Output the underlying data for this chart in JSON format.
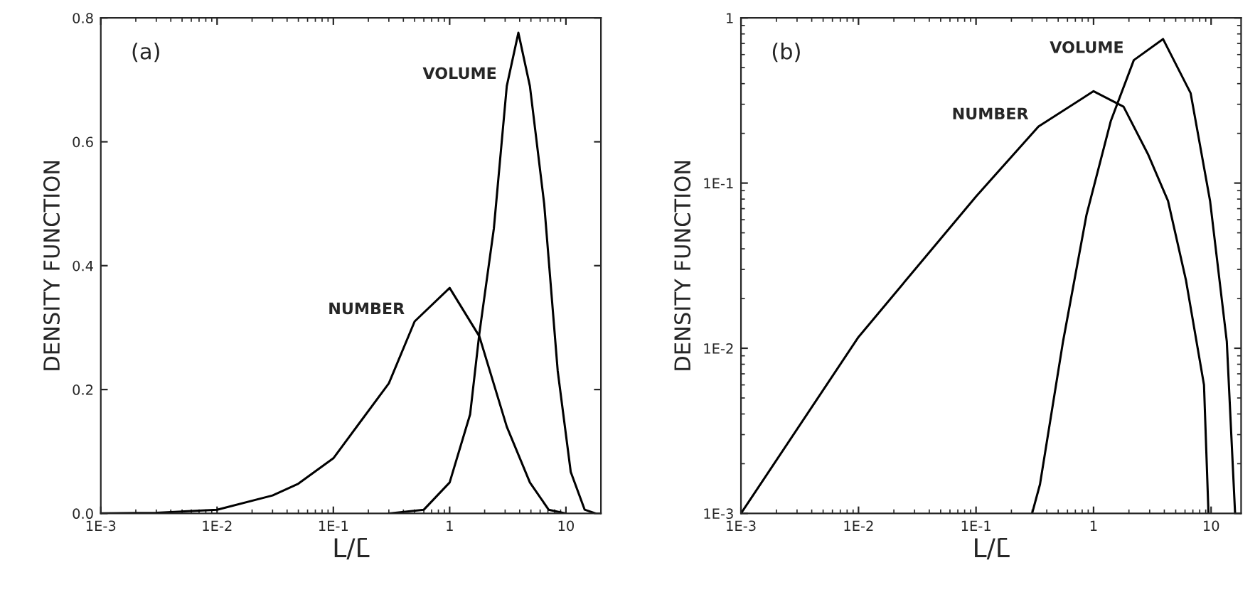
{
  "chart_data": [
    {
      "type": "line",
      "xlabel": "L/L̄",
      "ylabel": "DENSITY FUNCTION",
      "annotations": [
        "(a)"
      ],
      "log": "x",
      "grid": false,
      "legend": false,
      "marker": "none",
      "line_style": "solid",
      "xlim": [
        0.001,
        20
      ],
      "ylim": [
        0,
        0.8
      ],
      "xticks": [
        {
          "value": 0.001,
          "label": "1E-3"
        },
        {
          "value": 0.01,
          "label": "1E-2"
        },
        {
          "value": 0.1,
          "label": "1E-1"
        },
        1,
        10
      ],
      "yticks": [
        {
          "value": 0,
          "label": "0.0"
        },
        0.2,
        0.4,
        0.6,
        0.8
      ],
      "series": [
        {
          "name": "NUMBER",
          "color": "#000000",
          "x": [
            0.001,
            0.003,
            0.01,
            0.03,
            0.05,
            0.1,
            0.3,
            0.5,
            1,
            1.8,
            3.1,
            4.9,
            7.1,
            10
          ],
          "values": [
            0.0,
            0.001,
            0.006,
            0.029,
            0.048,
            0.089,
            0.21,
            0.31,
            0.364,
            0.286,
            0.14,
            0.05,
            0.006,
            0.0
          ]
        },
        {
          "name": "VOLUME",
          "color": "#000000",
          "x": [
            0.3,
            0.6,
            1,
            1.5,
            1.8,
            2.4,
            3.1,
            3.9,
            4.9,
            6.5,
            8.5,
            11,
            14.5,
            18
          ],
          "values": [
            0.0,
            0.006,
            0.05,
            0.16,
            0.29,
            0.46,
            0.69,
            0.776,
            0.69,
            0.5,
            0.23,
            0.067,
            0.006,
            0.0
          ]
        }
      ]
    },
    {
      "type": "line",
      "xlabel": "L/L̄",
      "ylabel": "DENSITY FUNCTION",
      "annotations": [
        "(b)"
      ],
      "log": "xy",
      "grid": false,
      "legend": false,
      "marker": "none",
      "line_style": "solid",
      "xlim": [
        0.001,
        18
      ],
      "ylim": [
        0.001,
        1
      ],
      "xticks": [
        {
          "value": 0.001,
          "label": "1E-3"
        },
        {
          "value": 0.01,
          "label": "1E-2"
        },
        {
          "value": 0.1,
          "label": "1E-1"
        },
        1,
        10
      ],
      "yticks": [
        {
          "value": 0.001,
          "label": "1E-3"
        },
        {
          "value": 0.01,
          "label": "1E-2"
        },
        {
          "value": 0.1,
          "label": "1E-1"
        },
        1
      ],
      "series": [
        {
          "name": "NUMBER",
          "color": "#000000",
          "x": [
            0.001,
            0.01,
            0.1,
            0.34,
            1,
            1.8,
            2.9,
            4.3,
            6.1,
            8.7,
            9.5
          ],
          "values": [
            0.001,
            0.0117,
            0.083,
            0.22,
            0.36,
            0.29,
            0.15,
            0.078,
            0.026,
            0.006,
            0.001
          ]
        },
        {
          "name": "VOLUME",
          "color": "#000000",
          "x": [
            0.3,
            0.35,
            0.55,
            0.87,
            1.4,
            2.2,
            3.9,
            6.7,
            9.8,
            13.6,
            16
          ],
          "values": [
            0.001,
            0.0015,
            0.011,
            0.064,
            0.237,
            0.555,
            0.745,
            0.35,
            0.078,
            0.011,
            0.001
          ]
        }
      ]
    }
  ]
}
